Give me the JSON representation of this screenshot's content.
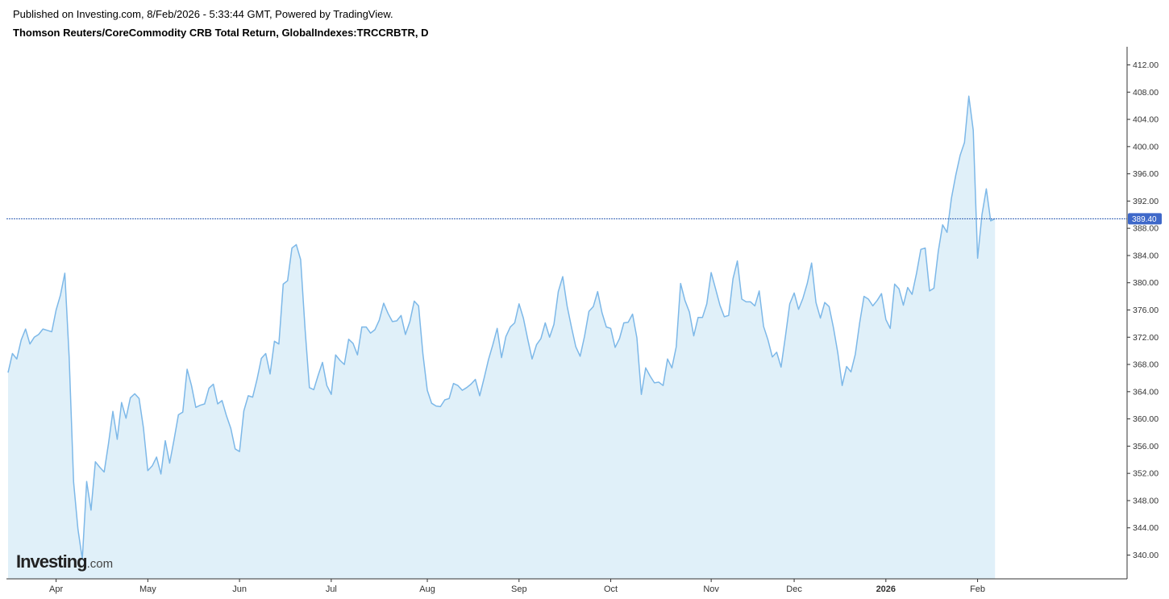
{
  "header": {
    "published": "Published on Investing.com, 8/Feb/2026 - 5:33:44 GMT, Powered by TradingView.",
    "title": "Thomson Reuters/CoreCommodity CRB Total Return, GlobalIndexes:TRCCRBTR, D"
  },
  "logo": {
    "main": "Investing",
    "suffix": ".com"
  },
  "colors": {
    "line": "#7db8e8",
    "area": "#e0f0f9",
    "price_line": "#2f5fb3",
    "price_label_bg": "#3e68c9",
    "axis": "#333333"
  },
  "chart_data": {
    "type": "area",
    "title": "Thomson Reuters/CoreCommodity CRB Total Return, GlobalIndexes:TRCCRBTR, D",
    "xlabel": "",
    "ylabel": "",
    "ylim": [
      336.5,
      415.0
    ],
    "y_ticks": [
      "412.00",
      "408.00",
      "404.00",
      "400.00",
      "396.00",
      "392.00",
      "388.00",
      "384.00",
      "380.00",
      "376.00",
      "372.00",
      "368.00",
      "364.00",
      "360.00",
      "356.00",
      "352.00",
      "348.00",
      "344.00",
      "340.00"
    ],
    "x_ticks": [
      {
        "label": "Apr",
        "index": 11,
        "bold": false
      },
      {
        "label": "May",
        "index": 32,
        "bold": false
      },
      {
        "label": "Jun",
        "index": 53,
        "bold": false
      },
      {
        "label": "Jul",
        "index": 74,
        "bold": false
      },
      {
        "label": "Aug",
        "index": 96,
        "bold": false
      },
      {
        "label": "Sep",
        "index": 117,
        "bold": false
      },
      {
        "label": "Oct",
        "index": 138,
        "bold": false
      },
      {
        "label": "Nov",
        "index": 161,
        "bold": false
      },
      {
        "label": "Dec",
        "index": 180,
        "bold": false
      },
      {
        "label": "2026",
        "index": 201,
        "bold": true
      },
      {
        "label": "Feb",
        "index": 222,
        "bold": false
      }
    ],
    "last_price": "389.40",
    "last_value": 389.4,
    "grid": false,
    "legend": "none",
    "series": [
      {
        "values": [
          366.8,
          369.6,
          368.8,
          371.6,
          373.2,
          371.0,
          372.0,
          372.4,
          373.2,
          373.0,
          372.8,
          376.0,
          378.2,
          381.4,
          369.0,
          350.7,
          343.8,
          339.4,
          350.8,
          346.6,
          353.7,
          352.9,
          352.2,
          356.4,
          361.1,
          357.0,
          362.4,
          360.1,
          363.1,
          363.7,
          363.0,
          358.7,
          352.4,
          353.1,
          354.4,
          351.9,
          356.8,
          353.5,
          356.9,
          360.6,
          361.0,
          367.3,
          364.9,
          361.7,
          362.0,
          362.2,
          364.5,
          365.1,
          362.2,
          362.7,
          360.5,
          358.6,
          355.6,
          355.2,
          361.2,
          363.4,
          363.2,
          365.8,
          368.9,
          369.6,
          366.6,
          371.4,
          371.0,
          379.8,
          380.3,
          385.1,
          385.6,
          383.4,
          373.2,
          364.6,
          364.3,
          366.4,
          368.3,
          364.9,
          363.6,
          369.4,
          368.6,
          368.0,
          371.7,
          371.1,
          369.4,
          373.5,
          373.5,
          372.6,
          373.1,
          374.5,
          377.0,
          375.5,
          374.3,
          374.4,
          375.2,
          372.4,
          374.3,
          377.3,
          376.6,
          369.5,
          364.2,
          362.3,
          361.9,
          361.8,
          362.8,
          363.0,
          365.2,
          364.9,
          364.2,
          364.6,
          365.1,
          365.8,
          363.4,
          366.0,
          368.7,
          370.9,
          373.3,
          369.0,
          372.1,
          373.5,
          374.1,
          376.9,
          374.8,
          371.7,
          368.8,
          370.9,
          371.8,
          374.1,
          372.0,
          373.9,
          378.7,
          380.9,
          376.6,
          373.5,
          370.6,
          369.2,
          372.1,
          375.8,
          376.5,
          378.7,
          375.6,
          373.5,
          373.3,
          370.5,
          371.8,
          374.1,
          374.2,
          375.4,
          371.9,
          363.6,
          367.5,
          366.3,
          365.3,
          365.4,
          364.9,
          368.8,
          367.5,
          370.6,
          379.9,
          377.4,
          375.7,
          372.2,
          374.9,
          374.9,
          376.9,
          381.5,
          379.1,
          376.7,
          375.0,
          375.2,
          380.6,
          383.2,
          377.6,
          377.2,
          377.2,
          376.6,
          378.8,
          373.6,
          371.6,
          369.1,
          369.8,
          367.6,
          372.1,
          376.9,
          378.5,
          376.1,
          377.7,
          379.9,
          382.9,
          377.1,
          374.8,
          377.1,
          376.5,
          373.4,
          369.7,
          364.9,
          367.7,
          366.9,
          369.5,
          374.1,
          378.0,
          377.6,
          376.6,
          377.4,
          378.4,
          374.6,
          373.3,
          379.8,
          379.1,
          376.7,
          379.3,
          378.3,
          381.3,
          384.9,
          385.1,
          378.8,
          379.2,
          384.6,
          388.5,
          387.4,
          392.4,
          395.8,
          398.7,
          400.6,
          407.4,
          402.4,
          383.6,
          390.0,
          393.8,
          389.1,
          389.4
        ]
      }
    ]
  }
}
